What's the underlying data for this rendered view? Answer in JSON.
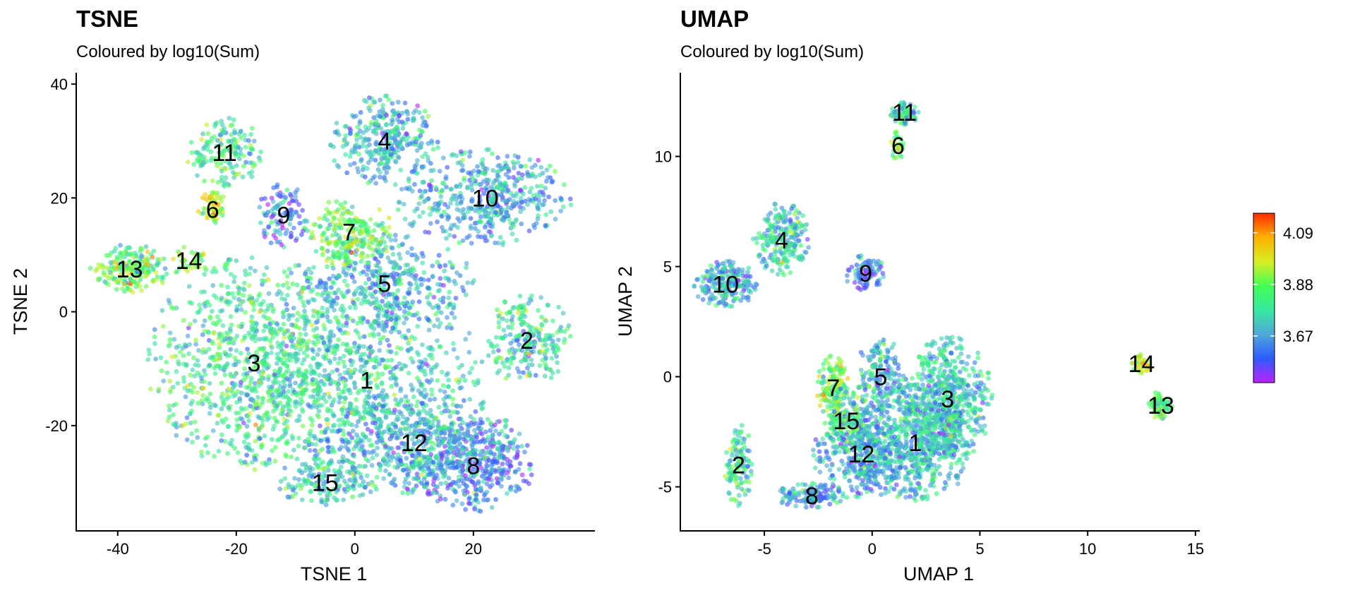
{
  "color_scale": {
    "stops": [
      "#bb22ff",
      "#2d5bff",
      "#4fa8d8",
      "#37e8a0",
      "#44ff55",
      "#d8ee22",
      "#ffb000",
      "#ff2a00"
    ],
    "range": [
      3.48,
      4.17
    ],
    "ticks": [
      3.67,
      3.88,
      4.09
    ],
    "tick_labels": [
      "3.67",
      "3.88",
      "4.09"
    ]
  },
  "chart_data": [
    {
      "type": "scatter",
      "title": "TSNE",
      "subtitle": "Coloured by log10(Sum)",
      "xlabel": "TSNE 1",
      "ylabel": "TSNE 2",
      "xlim": [
        -47,
        40.5
      ],
      "ylim": [
        -38.5,
        42
      ],
      "xticks": [
        -40,
        -20,
        0,
        20
      ],
      "xtick_labels": [
        "-40",
        "-20",
        "0",
        "20"
      ],
      "yticks": [
        -20,
        0,
        20,
        40
      ],
      "ytick_labels": [
        "-20",
        "0",
        "20",
        "40"
      ],
      "grid": false,
      "clusters": [
        {
          "label": "1",
          "x": 2,
          "y": -12,
          "sx": 11,
          "sy": 10,
          "n": 750,
          "c": 0.38
        },
        {
          "label": "2",
          "x": 29,
          "y": -5,
          "sx": 4.2,
          "sy": 4.2,
          "n": 230,
          "c": 0.4
        },
        {
          "label": "3",
          "x": -17,
          "y": -9,
          "sx": 9.5,
          "sy": 10,
          "n": 900,
          "c": 0.45
        },
        {
          "label": "4",
          "x": 5,
          "y": 30,
          "sx": 5,
          "sy": 4.2,
          "n": 320,
          "c": 0.33
        },
        {
          "label": "5",
          "x": 5,
          "y": 5,
          "sx": 8,
          "sy": 4.5,
          "n": 380,
          "c": 0.32
        },
        {
          "label": "6",
          "x": -24,
          "y": 18,
          "sx": 1.4,
          "sy": 1.6,
          "n": 60,
          "c": 0.66
        },
        {
          "label": "7",
          "x": -1,
          "y": 14,
          "sx": 4,
          "sy": 3.2,
          "n": 220,
          "c": 0.57
        },
        {
          "label": "8",
          "x": 20,
          "y": -27,
          "sx": 5.5,
          "sy": 4.5,
          "n": 380,
          "c": 0.22
        },
        {
          "label": "9",
          "x": -12,
          "y": 17,
          "sx": 2.3,
          "sy": 3,
          "n": 110,
          "c": 0.2
        },
        {
          "label": "10",
          "x": 22,
          "y": 20,
          "sx": 8,
          "sy": 4.5,
          "n": 480,
          "c": 0.3
        },
        {
          "label": "11",
          "x": -22,
          "y": 28,
          "sx": 3.5,
          "sy": 3.2,
          "n": 160,
          "c": 0.45
        },
        {
          "label": "12",
          "x": 10,
          "y": -23,
          "sx": 9,
          "sy": 5,
          "n": 500,
          "c": 0.32
        },
        {
          "label": "13",
          "x": -38,
          "y": 7.5,
          "sx": 3.5,
          "sy": 2.3,
          "n": 200,
          "c": 0.55
        },
        {
          "label": "14",
          "x": -28,
          "y": 9,
          "sx": 2,
          "sy": 1.5,
          "n": 40,
          "c": 0.62
        },
        {
          "label": "15",
          "x": -5,
          "y": -30,
          "sx": 4.5,
          "sy": 2.3,
          "n": 150,
          "c": 0.4
        }
      ]
    },
    {
      "type": "scatter",
      "title": "UMAP",
      "subtitle": "Coloured by log10(Sum)",
      "xlabel": "UMAP 1",
      "ylabel": "UMAP 2",
      "xlim": [
        -8.9,
        15.2
      ],
      "ylim": [
        -7,
        13.8
      ],
      "xticks": [
        -5,
        0,
        5,
        10,
        15
      ],
      "xtick_labels": [
        "-5",
        "0",
        "5",
        "10",
        "15"
      ],
      "yticks": [
        -5,
        0,
        5,
        10
      ],
      "ytick_labels": [
        "-5",
        "0",
        "5",
        "10"
      ],
      "grid": false,
      "clusters": [
        {
          "label": "1",
          "x": 2,
          "y": -3,
          "sx": 1.5,
          "sy": 1.4,
          "n": 650,
          "c": 0.35
        },
        {
          "label": "2",
          "x": -6.2,
          "y": -4,
          "sx": 0.35,
          "sy": 1,
          "n": 120,
          "c": 0.43
        },
        {
          "label": "3",
          "x": 3.5,
          "y": -1,
          "sx": 1.1,
          "sy": 1.5,
          "n": 550,
          "c": 0.38
        },
        {
          "label": "4",
          "x": -4.2,
          "y": 6.2,
          "sx": 0.7,
          "sy": 0.9,
          "n": 220,
          "c": 0.38
        },
        {
          "label": "5",
          "x": 0.4,
          "y": 0,
          "sx": 0.6,
          "sy": 1,
          "n": 180,
          "c": 0.33
        },
        {
          "label": "6",
          "x": 1.2,
          "y": 10.5,
          "sx": 0.18,
          "sy": 0.35,
          "n": 30,
          "c": 0.62
        },
        {
          "label": "7",
          "x": -1.8,
          "y": -0.5,
          "sx": 0.4,
          "sy": 0.8,
          "n": 150,
          "c": 0.58
        },
        {
          "label": "8",
          "x": -2.8,
          "y": -5.4,
          "sx": 0.9,
          "sy": 0.3,
          "n": 150,
          "c": 0.3
        },
        {
          "label": "9",
          "x": -0.3,
          "y": 4.7,
          "sx": 0.5,
          "sy": 0.45,
          "n": 90,
          "c": 0.18
        },
        {
          "label": "10",
          "x": -6.8,
          "y": 4.2,
          "sx": 0.8,
          "sy": 0.55,
          "n": 220,
          "c": 0.3
        },
        {
          "label": "11",
          "x": 1.5,
          "y": 12,
          "sx": 0.35,
          "sy": 0.3,
          "n": 80,
          "c": 0.4
        },
        {
          "label": "12",
          "x": -0.5,
          "y": -3.5,
          "sx": 1.2,
          "sy": 1.1,
          "n": 380,
          "c": 0.3
        },
        {
          "label": "13",
          "x": 13.4,
          "y": -1.3,
          "sx": 0.3,
          "sy": 0.35,
          "n": 70,
          "c": 0.52
        },
        {
          "label": "14",
          "x": 12.5,
          "y": 0.6,
          "sx": 0.25,
          "sy": 0.25,
          "n": 35,
          "c": 0.7
        },
        {
          "label": "15",
          "x": -1.2,
          "y": -2,
          "sx": 0.6,
          "sy": 0.8,
          "n": 120,
          "c": 0.45
        }
      ]
    }
  ]
}
